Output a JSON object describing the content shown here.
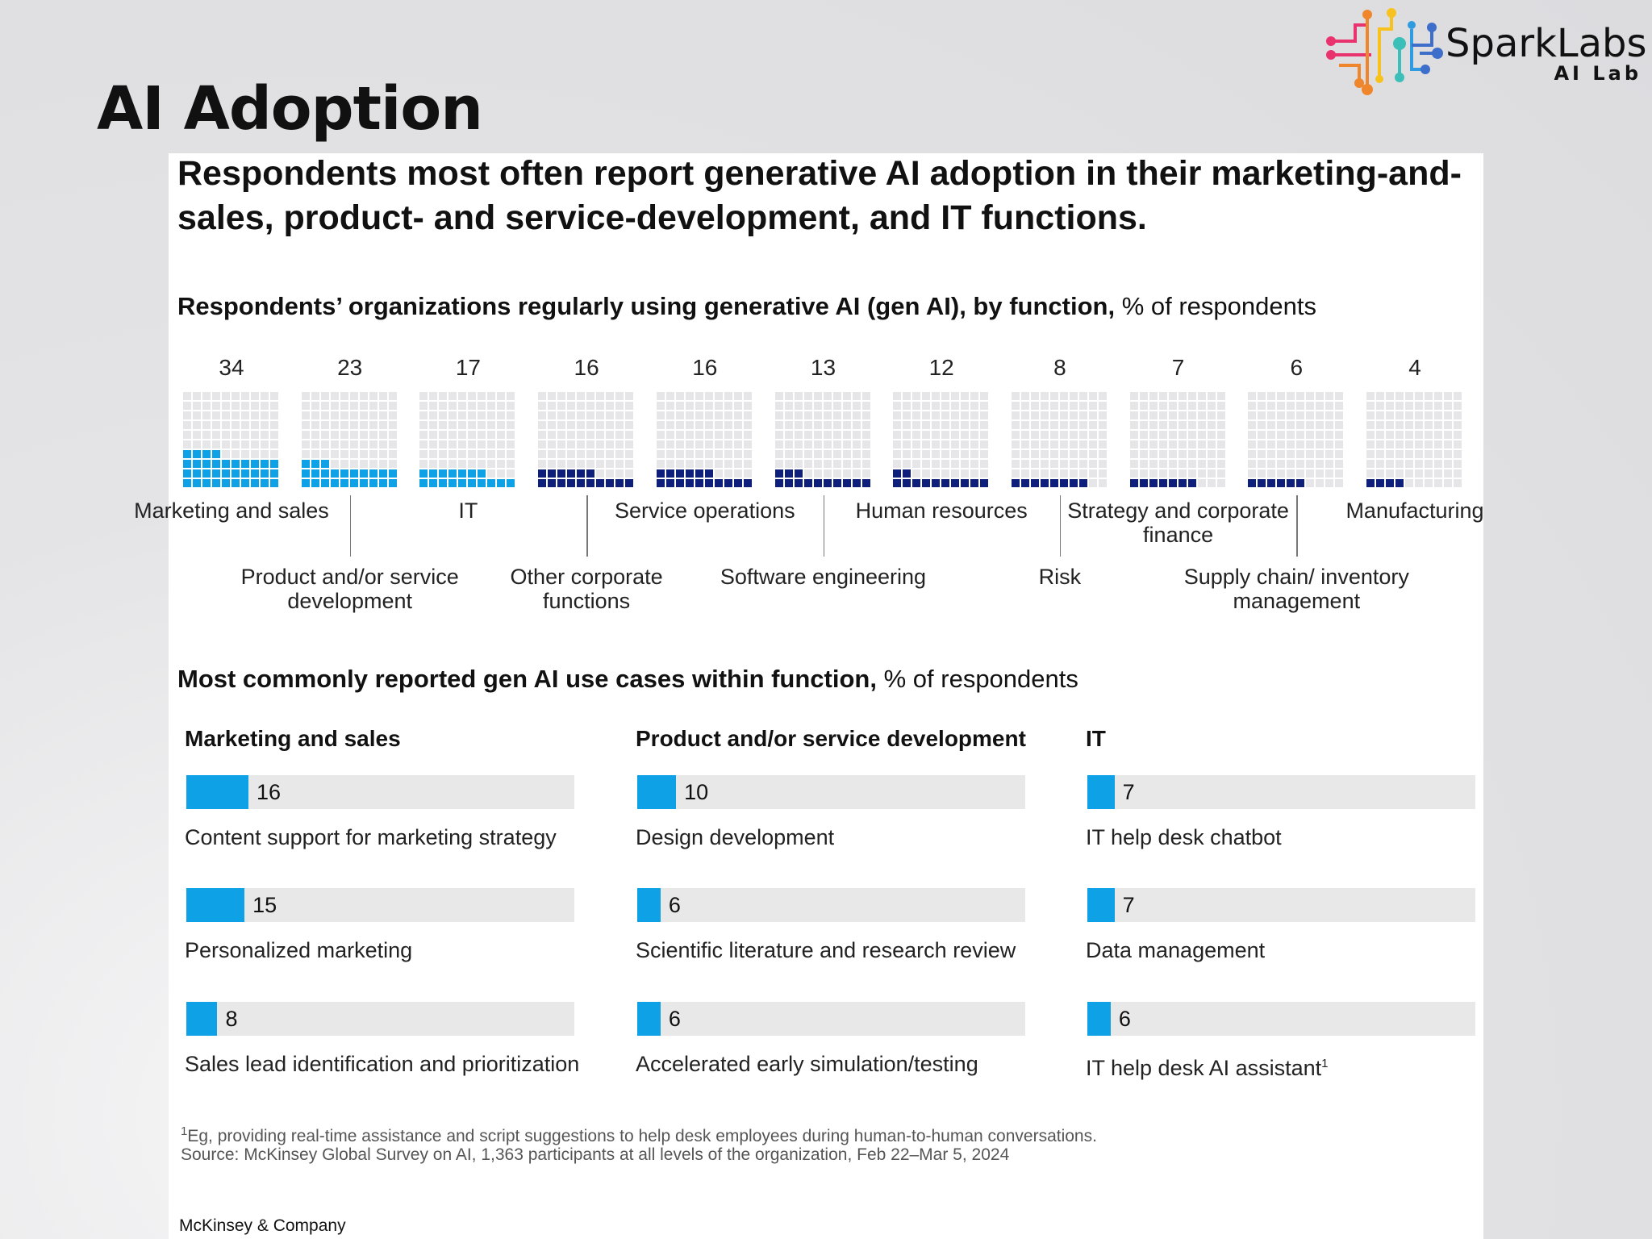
{
  "page_title": "AI Adoption",
  "logo": {
    "name": "SparkLabs",
    "sub": "AI Lab",
    "colors": [
      "#e8336e",
      "#f0862c",
      "#f7c21e",
      "#3bbfb8",
      "#2f9be0",
      "#3d6ec9"
    ]
  },
  "headline": "Respondents most often report generative AI adoption in their marketing-and-sales, product- and service-development, and IT functions.",
  "chart_data": [
    {
      "type": "waffle",
      "title_bold": "Respondents’ organizations regularly using generative AI (gen AI), by function,",
      "title_unit": "% of respondents",
      "grid": "10x10",
      "colors": {
        "highlight": "#0ea1e6",
        "other": "#0d1f7a",
        "empty": "#e6e6e8"
      },
      "categories": [
        "Marketing and sales",
        "Product and/or service development",
        "IT",
        "Other corporate functions",
        "Service operations",
        "Software engineering",
        "Human resources",
        "Risk",
        "Strategy and corporate finance",
        "Supply chain/ inventory management",
        "Manufacturing"
      ],
      "values": [
        34,
        23,
        17,
        16,
        16,
        13,
        12,
        8,
        7,
        6,
        4
      ],
      "labels": [
        "34",
        "23",
        "17",
        "16",
        "16",
        "13",
        "12",
        "8",
        "7",
        "6",
        "4"
      ],
      "highlighted": [
        0,
        1,
        2
      ]
    },
    {
      "type": "bar",
      "title_bold": "Most commonly reported gen AI use cases within function,",
      "title_unit": "% of respondents",
      "xlim": [
        0,
        100
      ],
      "color": "#0ea1e6",
      "track_color": "#e8e8e8",
      "groups": [
        {
          "name": "Marketing and sales",
          "items": [
            {
              "label": "Content support for marketing strategy",
              "value": 16,
              "text": "16"
            },
            {
              "label": "Personalized marketing",
              "value": 15,
              "text": "15"
            },
            {
              "label": "Sales lead identification and prioritization",
              "value": 8,
              "text": "8"
            }
          ]
        },
        {
          "name": "Product and/or service development",
          "items": [
            {
              "label": "Design development",
              "value": 10,
              "text": "10"
            },
            {
              "label": "Scientific literature and research review",
              "value": 6,
              "text": "6"
            },
            {
              "label": "Accelerated early simulation/testing",
              "value": 6,
              "text": "6"
            }
          ]
        },
        {
          "name": "IT",
          "items": [
            {
              "label": "IT help desk chatbot",
              "value": 7,
              "text": "7"
            },
            {
              "label": "Data management",
              "value": 7,
              "text": "7"
            },
            {
              "label": "IT help desk AI assistant",
              "value": 6,
              "text": "6",
              "sup": "1"
            }
          ]
        }
      ]
    }
  ],
  "footnote": {
    "sup": "1",
    "text": "Eg, providing real-time assistance and script suggestions to help desk employees during human-to-human conversations.",
    "source": "Source: McKinsey Global Survey on AI, 1,363 participants at all levels of the organization, Feb 22–Mar 5, 2024"
  },
  "credit": "McKinsey & Company"
}
